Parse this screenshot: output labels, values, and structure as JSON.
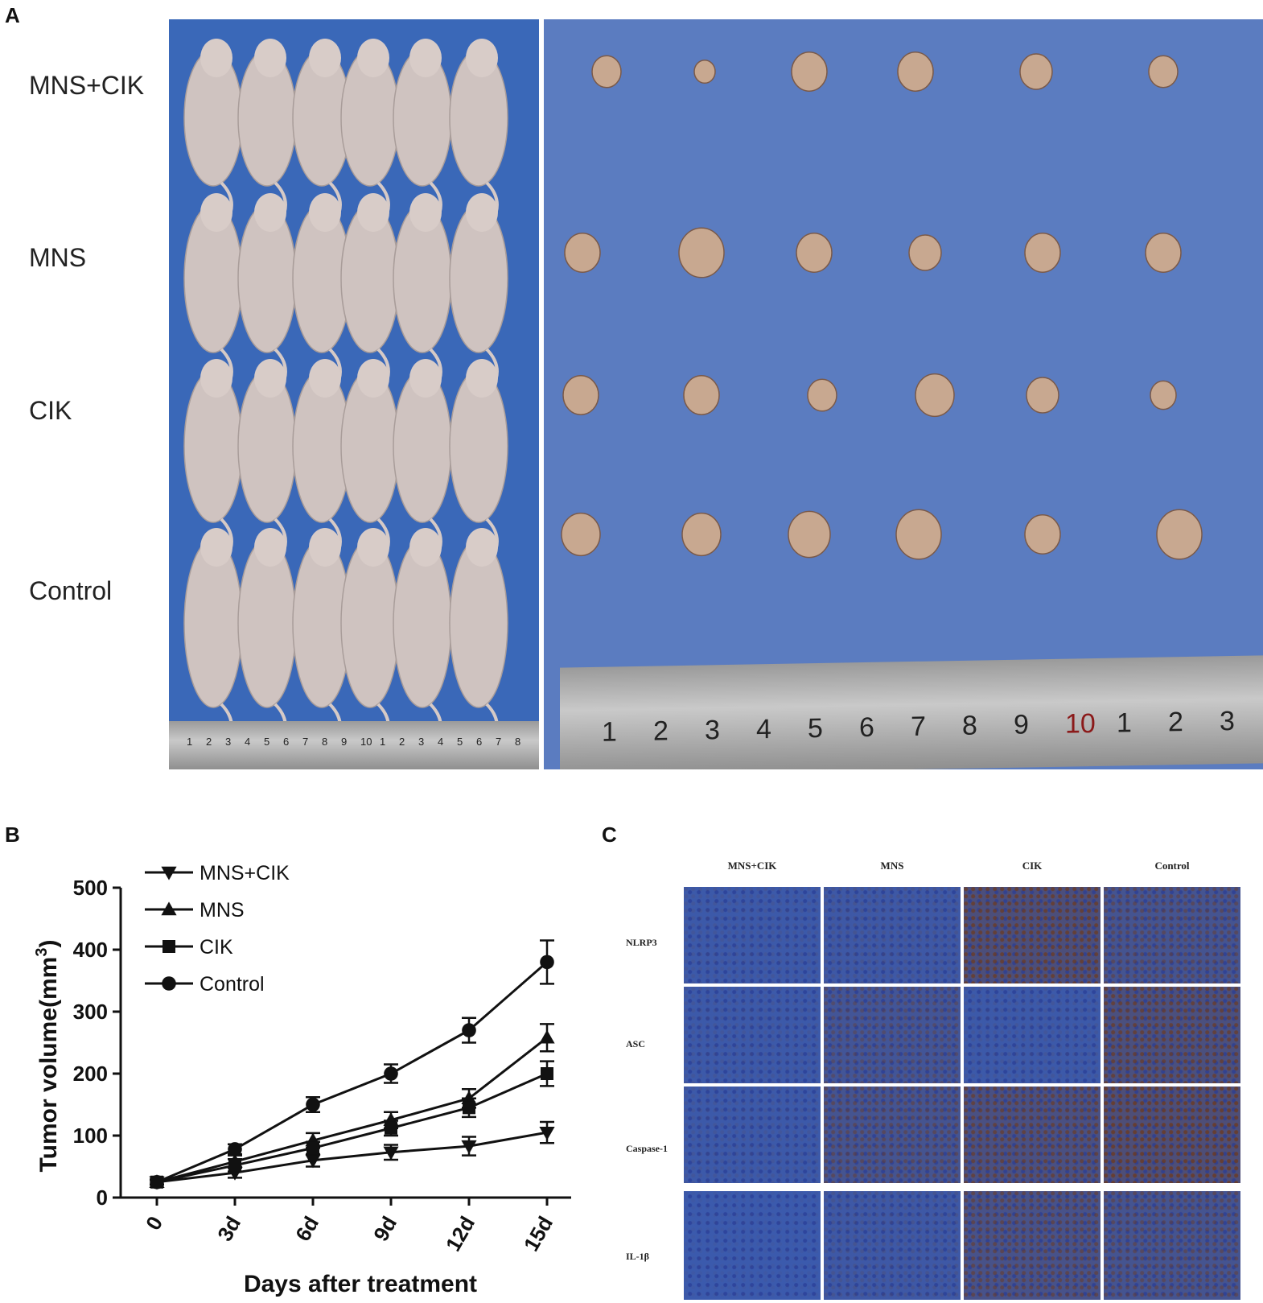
{
  "panels": {
    "A": "A",
    "B": "B",
    "C": "C"
  },
  "panel_a": {
    "group_labels": [
      "MNS+CIK",
      "MNS",
      "CIK",
      "Control"
    ],
    "ruler_small_marks": [
      "1",
      "2",
      "3",
      "4",
      "5",
      "6",
      "7",
      "8",
      "9",
      "10",
      "1",
      "2",
      "3",
      "4",
      "5",
      "6",
      "7",
      "8"
    ],
    "ruler_large_marks": [
      "1",
      "2",
      "3",
      "4",
      "5",
      "6",
      "7",
      "8",
      "9",
      "10",
      "1",
      "2",
      "3"
    ]
  },
  "panel_c": {
    "col_labels": [
      "MNS+CIK",
      "MNS",
      "CIK",
      "Control"
    ],
    "row_labels": [
      "NLRP3",
      "ASC",
      "Caspase-1",
      "IL-1β"
    ],
    "colors": {
      "hematoxylin": "#3a5bb0",
      "dab": "#6b3a22"
    }
  },
  "chart_data": {
    "type": "line",
    "x": [
      "0",
      "3d",
      "6d",
      "9d",
      "12d",
      "15d"
    ],
    "xlabel": "Days after treatment",
    "ylabel": "Tumor volume(mm³)",
    "ylabel_base": "Tumor volume(mm",
    "ylabel_sup": "3",
    "ylabel_close": ")",
    "ylim": [
      0,
      500
    ],
    "yticks": [
      "0",
      "100",
      "200",
      "300",
      "400",
      "500"
    ],
    "legend_position": "top-left",
    "series": [
      {
        "name": "MNS+CIK",
        "marker": "triangle-down",
        "values": [
          25,
          40,
          60,
          73,
          83,
          105
        ],
        "errors": [
          4,
          8,
          10,
          12,
          15,
          17
        ]
      },
      {
        "name": "MNS",
        "marker": "triangle-up",
        "values": [
          25,
          58,
          92,
          125,
          160,
          258
        ],
        "errors": [
          4,
          10,
          12,
          13,
          15,
          22
        ]
      },
      {
        "name": "CIK",
        "marker": "square",
        "values": [
          25,
          52,
          80,
          112,
          145,
          200
        ],
        "errors": [
          4,
          10,
          10,
          12,
          15,
          20
        ]
      },
      {
        "name": "Control",
        "marker": "circle",
        "values": [
          25,
          78,
          150,
          200,
          270,
          380
        ],
        "errors": [
          4,
          8,
          12,
          15,
          20,
          35
        ]
      }
    ]
  }
}
